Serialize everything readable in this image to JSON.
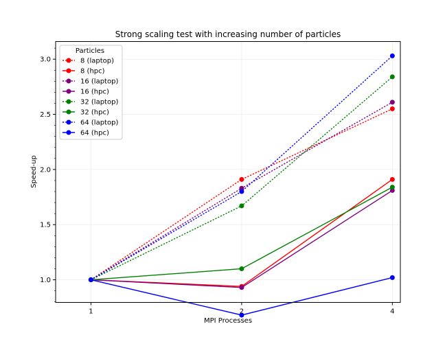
{
  "chart_data": {
    "type": "line",
    "title": "Strong scaling test with increasing number of particles",
    "xlabel": "MPI Processes",
    "ylabel": "Speed-up",
    "x": [
      1,
      2,
      4
    ],
    "x_ticks": [
      "1",
      "2",
      "4"
    ],
    "xlim": [
      0.85,
      4.15
    ],
    "y_ticks": [
      "1.0",
      "1.5",
      "2.0",
      "2.5",
      "3.0"
    ],
    "ylim": [
      0.795,
      3.16
    ],
    "grid": true,
    "legend": {
      "title": "Particles",
      "position": "top-left"
    },
    "series": [
      {
        "name": "8 (laptop)",
        "color": "#ff0000",
        "linestyle": "dotted",
        "values": [
          1.0,
          1.91,
          2.55
        ]
      },
      {
        "name": "8 (hpc)",
        "color": "#ff0000",
        "linestyle": "solid",
        "values": [
          1.0,
          0.94,
          1.91
        ]
      },
      {
        "name": "16 (laptop)",
        "color": "#800080",
        "linestyle": "dotted",
        "values": [
          1.0,
          1.83,
          2.61
        ]
      },
      {
        "name": "16 (hpc)",
        "color": "#800080",
        "linestyle": "solid",
        "values": [
          1.0,
          0.93,
          1.81
        ]
      },
      {
        "name": "32 (laptop)",
        "color": "#008000",
        "linestyle": "dotted",
        "values": [
          1.0,
          1.67,
          2.84
        ]
      },
      {
        "name": "32 (hpc)",
        "color": "#008000",
        "linestyle": "solid",
        "values": [
          1.0,
          1.1,
          1.84
        ]
      },
      {
        "name": "64 (laptop)",
        "color": "#0000ff",
        "linestyle": "dotted",
        "values": [
          1.0,
          1.8,
          3.03
        ]
      },
      {
        "name": "64 (hpc)",
        "color": "#0000ff",
        "linestyle": "solid",
        "values": [
          1.0,
          0.68,
          1.02
        ]
      }
    ]
  }
}
